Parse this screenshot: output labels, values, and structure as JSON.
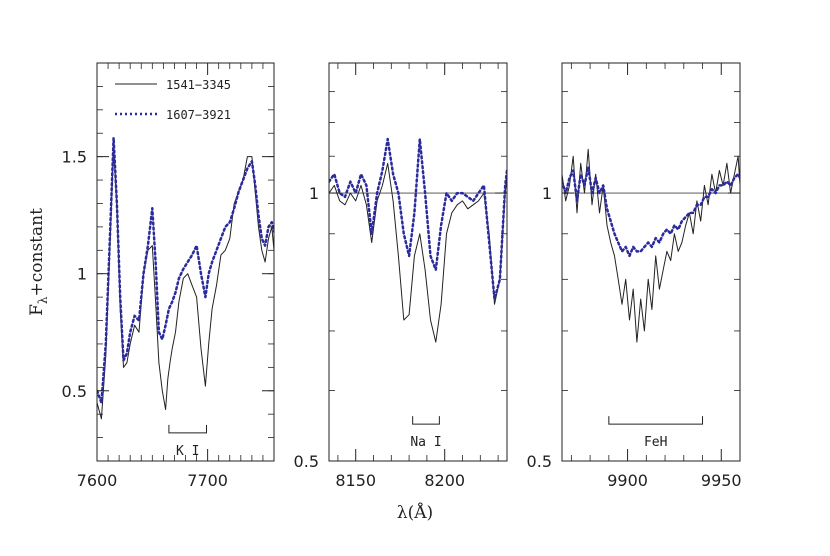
{
  "chart_data": {
    "type": "line",
    "ylabel": "F",
    "ylabel_sub": "λ",
    "ylabel_rest": "+constant",
    "xlabel": "λ(Å)",
    "legend": {
      "placement": "top-left",
      "entries": [
        {
          "label": "1541−3345",
          "style": "solid",
          "color": "#222222"
        },
        {
          "label": "1607−3921",
          "style": "dotted",
          "color": "#2b2b9e"
        }
      ]
    },
    "panels": [
      {
        "xlim": [
          7600,
          7760
        ],
        "ylim": [
          0.2,
          1.9
        ],
        "ylog": false,
        "yticks": [
          0.5,
          1,
          1.5
        ],
        "ytick_labels": [
          "0.5",
          "1",
          "1.5"
        ],
        "xticks": [
          7600,
          7700
        ],
        "xtick_labels": [
          "7600",
          "7700"
        ],
        "annotation": {
          "label": "K I",
          "x_range": [
            7665,
            7699
          ],
          "y": 0.32
        },
        "series": [
          {
            "x": [
              7600,
              7604,
              7608,
              7612,
              7615,
              7618,
              7621,
              7624,
              7627,
              7630,
              7634,
              7638,
              7642,
              7646,
              7650,
              7653,
              7656,
              7659,
              7662,
              7664,
              7666,
              7668,
              7671,
              7674,
              7678,
              7682,
              7686,
              7690,
              7694,
              7698,
              7701,
              7704,
              7708,
              7712,
              7716,
              7720,
              7724,
              7728,
              7732,
              7736,
              7740,
              7743,
              7746,
              7749,
              7752,
              7755,
              7758,
              7760
            ],
            "y": [
              0.45,
              0.38,
              0.65,
              1.15,
              1.55,
              1.28,
              0.85,
              0.6,
              0.62,
              0.7,
              0.78,
              0.75,
              1.0,
              1.1,
              1.12,
              0.88,
              0.62,
              0.5,
              0.42,
              0.55,
              0.62,
              0.68,
              0.75,
              0.88,
              0.98,
              1.0,
              0.95,
              0.9,
              0.68,
              0.52,
              0.7,
              0.85,
              0.95,
              1.08,
              1.1,
              1.15,
              1.3,
              1.35,
              1.4,
              1.5,
              1.5,
              1.35,
              1.2,
              1.1,
              1.05,
              1.15,
              1.2,
              1.1
            ]
          },
          {
            "x": [
              7600,
              7604,
              7608,
              7612,
              7615,
              7618,
              7621,
              7624,
              7627,
              7630,
              7634,
              7638,
              7642,
              7646,
              7650,
              7653,
              7656,
              7659,
              7662,
              7665,
              7668,
              7671,
              7674,
              7678,
              7682,
              7686,
              7690,
              7694,
              7698,
              7701,
              7704,
              7708,
              7712,
              7716,
              7720,
              7724,
              7728,
              7732,
              7736,
              7740,
              7743,
              7746,
              7749,
              7752,
              7755,
              7758,
              7760
            ],
            "y": [
              0.5,
              0.45,
              0.7,
              1.2,
              1.58,
              1.3,
              0.9,
              0.63,
              0.66,
              0.75,
              0.82,
              0.8,
              1.0,
              1.12,
              1.28,
              1.05,
              0.75,
              0.72,
              0.78,
              0.85,
              0.88,
              0.92,
              0.98,
              1.02,
              1.05,
              1.08,
              1.12,
              1.0,
              0.9,
              1.0,
              1.05,
              1.1,
              1.15,
              1.2,
              1.22,
              1.28,
              1.35,
              1.4,
              1.45,
              1.48,
              1.38,
              1.25,
              1.15,
              1.12,
              1.2,
              1.22,
              1.18
            ]
          }
        ]
      },
      {
        "xlim": [
          8135,
          8235
        ],
        "ylim": [
          0.5,
          1.4
        ],
        "ylog": true,
        "yticks": [
          0.5,
          1
        ],
        "ytick_labels": [
          "0.5",
          "1"
        ],
        "xticks": [
          8150,
          8200
        ],
        "xtick_labels": [
          "8150",
          "8200"
        ],
        "annotation": {
          "label": "Na I",
          "x_range": [
            8182,
            8197
          ],
          "y": 0.55
        },
        "series": [
          {
            "x": [
              8135,
              8138,
              8141,
              8144,
              8147,
              8150,
              8153,
              8156,
              8159,
              8162,
              8165,
              8168,
              8171,
              8174,
              8177,
              8180,
              8183,
              8186,
              8189,
              8192,
              8195,
              8198,
              8201,
              8204,
              8207,
              8210,
              8213,
              8216,
              8219,
              8222,
              8225,
              8228,
              8231,
              8234,
              8235
            ],
            "y": [
              1.0,
              1.02,
              0.98,
              0.97,
              1.0,
              0.98,
              1.02,
              0.97,
              0.88,
              0.98,
              1.02,
              1.08,
              0.98,
              0.85,
              0.72,
              0.73,
              0.85,
              0.9,
              0.82,
              0.72,
              0.68,
              0.75,
              0.9,
              0.95,
              0.97,
              0.98,
              0.96,
              0.97,
              0.98,
              1.0,
              0.9,
              0.75,
              0.8,
              1.0,
              1.05
            ]
          },
          {
            "x": [
              8135,
              8138,
              8141,
              8144,
              8147,
              8150,
              8153,
              8156,
              8159,
              8162,
              8165,
              8168,
              8171,
              8174,
              8177,
              8180,
              8183,
              8186,
              8189,
              8192,
              8195,
              8198,
              8201,
              8204,
              8207,
              8210,
              8213,
              8216,
              8219,
              8222,
              8225,
              8228,
              8231,
              8234,
              8235
            ],
            "y": [
              1.03,
              1.05,
              1.0,
              0.99,
              1.03,
              1.0,
              1.05,
              1.02,
              0.9,
              1.0,
              1.06,
              1.15,
              1.05,
              1.0,
              0.9,
              0.85,
              0.95,
              1.15,
              1.0,
              0.85,
              0.82,
              0.92,
              1.0,
              0.98,
              1.0,
              1.0,
              0.99,
              0.98,
              1.0,
              1.02,
              0.88,
              0.76,
              0.8,
              1.02,
              1.06
            ]
          }
        ]
      },
      {
        "xlim": [
          9865,
          9960
        ],
        "ylim": [
          0.5,
          1.4
        ],
        "ylog": true,
        "yticks": [
          0.5,
          1
        ],
        "ytick_labels": [
          "0.5",
          "1"
        ],
        "xticks": [
          9900,
          9950
        ],
        "xtick_labels": [
          "9900",
          "9950"
        ],
        "annotation": {
          "label": "FeH",
          "x_range": [
            9890,
            9940
          ],
          "y": 0.55
        },
        "series": [
          {
            "x": [
              9865,
              9867,
              9869,
              9871,
              9873,
              9875,
              9877,
              9879,
              9881,
              9883,
              9885,
              9887,
              9889,
              9891,
              9893,
              9895,
              9897,
              9899,
              9901,
              9903,
              9905,
              9907,
              9909,
              9911,
              9913,
              9915,
              9917,
              9919,
              9921,
              9923,
              9925,
              9927,
              9929,
              9931,
              9933,
              9935,
              9937,
              9939,
              9941,
              9943,
              9945,
              9947,
              9949,
              9951,
              9953,
              9955,
              9957,
              9959,
              9960
            ],
            "y": [
              1.05,
              0.98,
              1.02,
              1.1,
              0.95,
              1.08,
              1.0,
              1.12,
              0.97,
              1.05,
              0.95,
              1.02,
              0.92,
              0.88,
              0.85,
              0.8,
              0.75,
              0.8,
              0.72,
              0.78,
              0.68,
              0.76,
              0.7,
              0.8,
              0.74,
              0.85,
              0.78,
              0.82,
              0.86,
              0.84,
              0.9,
              0.86,
              0.88,
              0.92,
              0.95,
              0.9,
              0.98,
              0.93,
              1.02,
              0.97,
              1.05,
              1.0,
              1.06,
              1.02,
              1.08,
              1.0,
              1.05,
              1.1,
              1.02
            ]
          },
          {
            "x": [
              9865,
              9867,
              9869,
              9871,
              9873,
              9875,
              9877,
              9879,
              9881,
              9883,
              9885,
              9887,
              9889,
              9891,
              9893,
              9895,
              9897,
              9899,
              9901,
              9903,
              9905,
              9907,
              9909,
              9911,
              9913,
              9915,
              9917,
              9919,
              9921,
              9923,
              9925,
              9927,
              9929,
              9931,
              9933,
              9935,
              9937,
              9939,
              9941,
              9943,
              9945,
              9947,
              9949,
              9951,
              9953,
              9955,
              9957,
              9959,
              9960
            ],
            "y": [
              1.03,
              1.0,
              1.04,
              1.06,
              0.98,
              1.05,
              1.02,
              1.07,
              1.0,
              1.04,
              1.0,
              1.02,
              0.96,
              0.93,
              0.9,
              0.88,
              0.86,
              0.87,
              0.85,
              0.87,
              0.86,
              0.86,
              0.87,
              0.88,
              0.87,
              0.89,
              0.88,
              0.9,
              0.91,
              0.9,
              0.92,
              0.91,
              0.93,
              0.94,
              0.95,
              0.95,
              0.97,
              0.97,
              0.99,
              0.99,
              1.01,
              1.0,
              1.02,
              1.02,
              1.03,
              1.02,
              1.04,
              1.05,
              1.04
            ]
          }
        ]
      }
    ]
  }
}
